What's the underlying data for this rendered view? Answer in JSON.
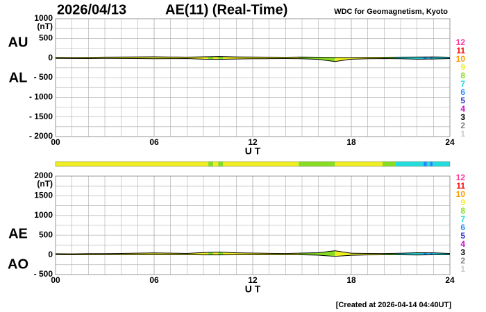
{
  "header": {
    "date": "2026/04/13",
    "title": "AE(11) (Real-Time)",
    "source": "WDC for Geomagnetism, Kyoto"
  },
  "footer": "[Created at 2026-04-14 04:40UT]",
  "chart_data": [
    {
      "type": "line",
      "ylabel": "(nT)",
      "xlabel": "U T",
      "x": [
        0,
        1,
        2,
        3,
        4,
        5,
        6,
        7,
        8,
        9,
        10,
        11,
        12,
        13,
        14,
        15,
        16,
        17,
        18,
        19,
        20,
        21,
        22,
        23,
        24
      ],
      "series": [
        {
          "name": "AU",
          "color": "#000000",
          "values": [
            20,
            15,
            18,
            22,
            25,
            28,
            30,
            26,
            22,
            30,
            35,
            28,
            25,
            22,
            20,
            25,
            20,
            15,
            12,
            18,
            20,
            22,
            25,
            28,
            20
          ]
        },
        {
          "name": "AL",
          "color": "#000000",
          "values": [
            -10,
            -12,
            -15,
            -10,
            -12,
            -15,
            -20,
            -18,
            -15,
            -30,
            -35,
            -25,
            -20,
            -18,
            -15,
            -20,
            -35,
            -90,
            -30,
            -20,
            -15,
            -20,
            -30,
            -25,
            -15
          ]
        }
      ],
      "xlim": [
        0,
        24
      ],
      "xticks": [
        {
          "value": 0,
          "label": "00"
        },
        {
          "value": 6,
          "label": "06"
        },
        12,
        18,
        24
      ],
      "ylim": [
        -2000,
        1000
      ],
      "yticks": [
        1000,
        500,
        0,
        {
          "value": -500,
          "label": "- 500"
        },
        {
          "value": -1000,
          "label": "- 1000"
        },
        {
          "value": -1500,
          "label": "- 1500"
        },
        {
          "value": -2000,
          "label": "- 2000"
        }
      ],
      "grid": true,
      "legend": {
        "values": [
          12,
          11,
          10,
          9,
          8,
          7,
          6,
          5,
          4,
          3,
          2,
          1
        ],
        "colors": [
          "#ff3399",
          "#ff0000",
          "#ff9900",
          "#eeee22",
          "#88dd22",
          "#22dddd",
          "#2288ff",
          "#3333cc",
          "#cc00cc",
          "#000000",
          "#808080",
          "#cccccc"
        ]
      },
      "coverage": [
        {
          "start": 0,
          "end": 9.3,
          "stations": 9
        },
        {
          "start": 9.3,
          "end": 9.6,
          "stations": 8
        },
        {
          "start": 9.6,
          "end": 9.9,
          "stations": 9
        },
        {
          "start": 9.9,
          "end": 10.2,
          "stations": 8
        },
        {
          "start": 10.2,
          "end": 14.8,
          "stations": 9
        },
        {
          "start": 14.8,
          "end": 17,
          "stations": 8
        },
        {
          "start": 17,
          "end": 19.9,
          "stations": 9
        },
        {
          "start": 19.9,
          "end": 20.7,
          "stations": 8
        },
        {
          "start": 20.7,
          "end": 22.4,
          "stations": 7
        },
        {
          "start": 22.4,
          "end": 22.6,
          "stations": 6
        },
        {
          "start": 22.6,
          "end": 22.8,
          "stations": 7
        },
        {
          "start": 22.8,
          "end": 22.95,
          "stations": 6
        },
        {
          "start": 22.95,
          "end": 24,
          "stations": 7
        }
      ]
    },
    {
      "type": "line",
      "ylabel": "(nT)",
      "xlabel": "U T",
      "x": [
        0,
        1,
        2,
        3,
        4,
        5,
        6,
        7,
        8,
        9,
        10,
        11,
        12,
        13,
        14,
        15,
        16,
        17,
        18,
        19,
        20,
        21,
        22,
        23,
        24
      ],
      "series": [
        {
          "name": "AE",
          "color": "#000000",
          "values": [
            30,
            27,
            33,
            32,
            37,
            43,
            50,
            44,
            37,
            60,
            70,
            53,
            45,
            40,
            35,
            45,
            55,
            105,
            42,
            38,
            35,
            42,
            55,
            53,
            35
          ]
        },
        {
          "name": "AO",
          "color": "#000000",
          "values": [
            5,
            1.5,
            1.5,
            6,
            6.5,
            6.5,
            5,
            4,
            3.5,
            0,
            0,
            1.5,
            2.5,
            2,
            2.5,
            2.5,
            -7.5,
            -37.5,
            -9,
            -1,
            2.5,
            1,
            -2.5,
            1.5,
            2.5
          ]
        }
      ],
      "xlim": [
        0,
        24
      ],
      "xticks": [
        {
          "value": 0,
          "label": "00"
        },
        {
          "value": 6,
          "label": "06"
        },
        12,
        18,
        24
      ],
      "ylim": [
        -500,
        2000
      ],
      "yticks": [
        2000,
        1500,
        1000,
        500,
        0,
        {
          "value": -500,
          "label": "- 500"
        }
      ],
      "grid": true,
      "legend": {
        "values": [
          12,
          11,
          10,
          9,
          8,
          7,
          6,
          5,
          4,
          3,
          2,
          1
        ],
        "colors": [
          "#ff3399",
          "#ff0000",
          "#ff9900",
          "#eeee22",
          "#88dd22",
          "#22dddd",
          "#2288ff",
          "#3333cc",
          "#cc00cc",
          "#000000",
          "#808080",
          "#cccccc"
        ]
      }
    }
  ]
}
